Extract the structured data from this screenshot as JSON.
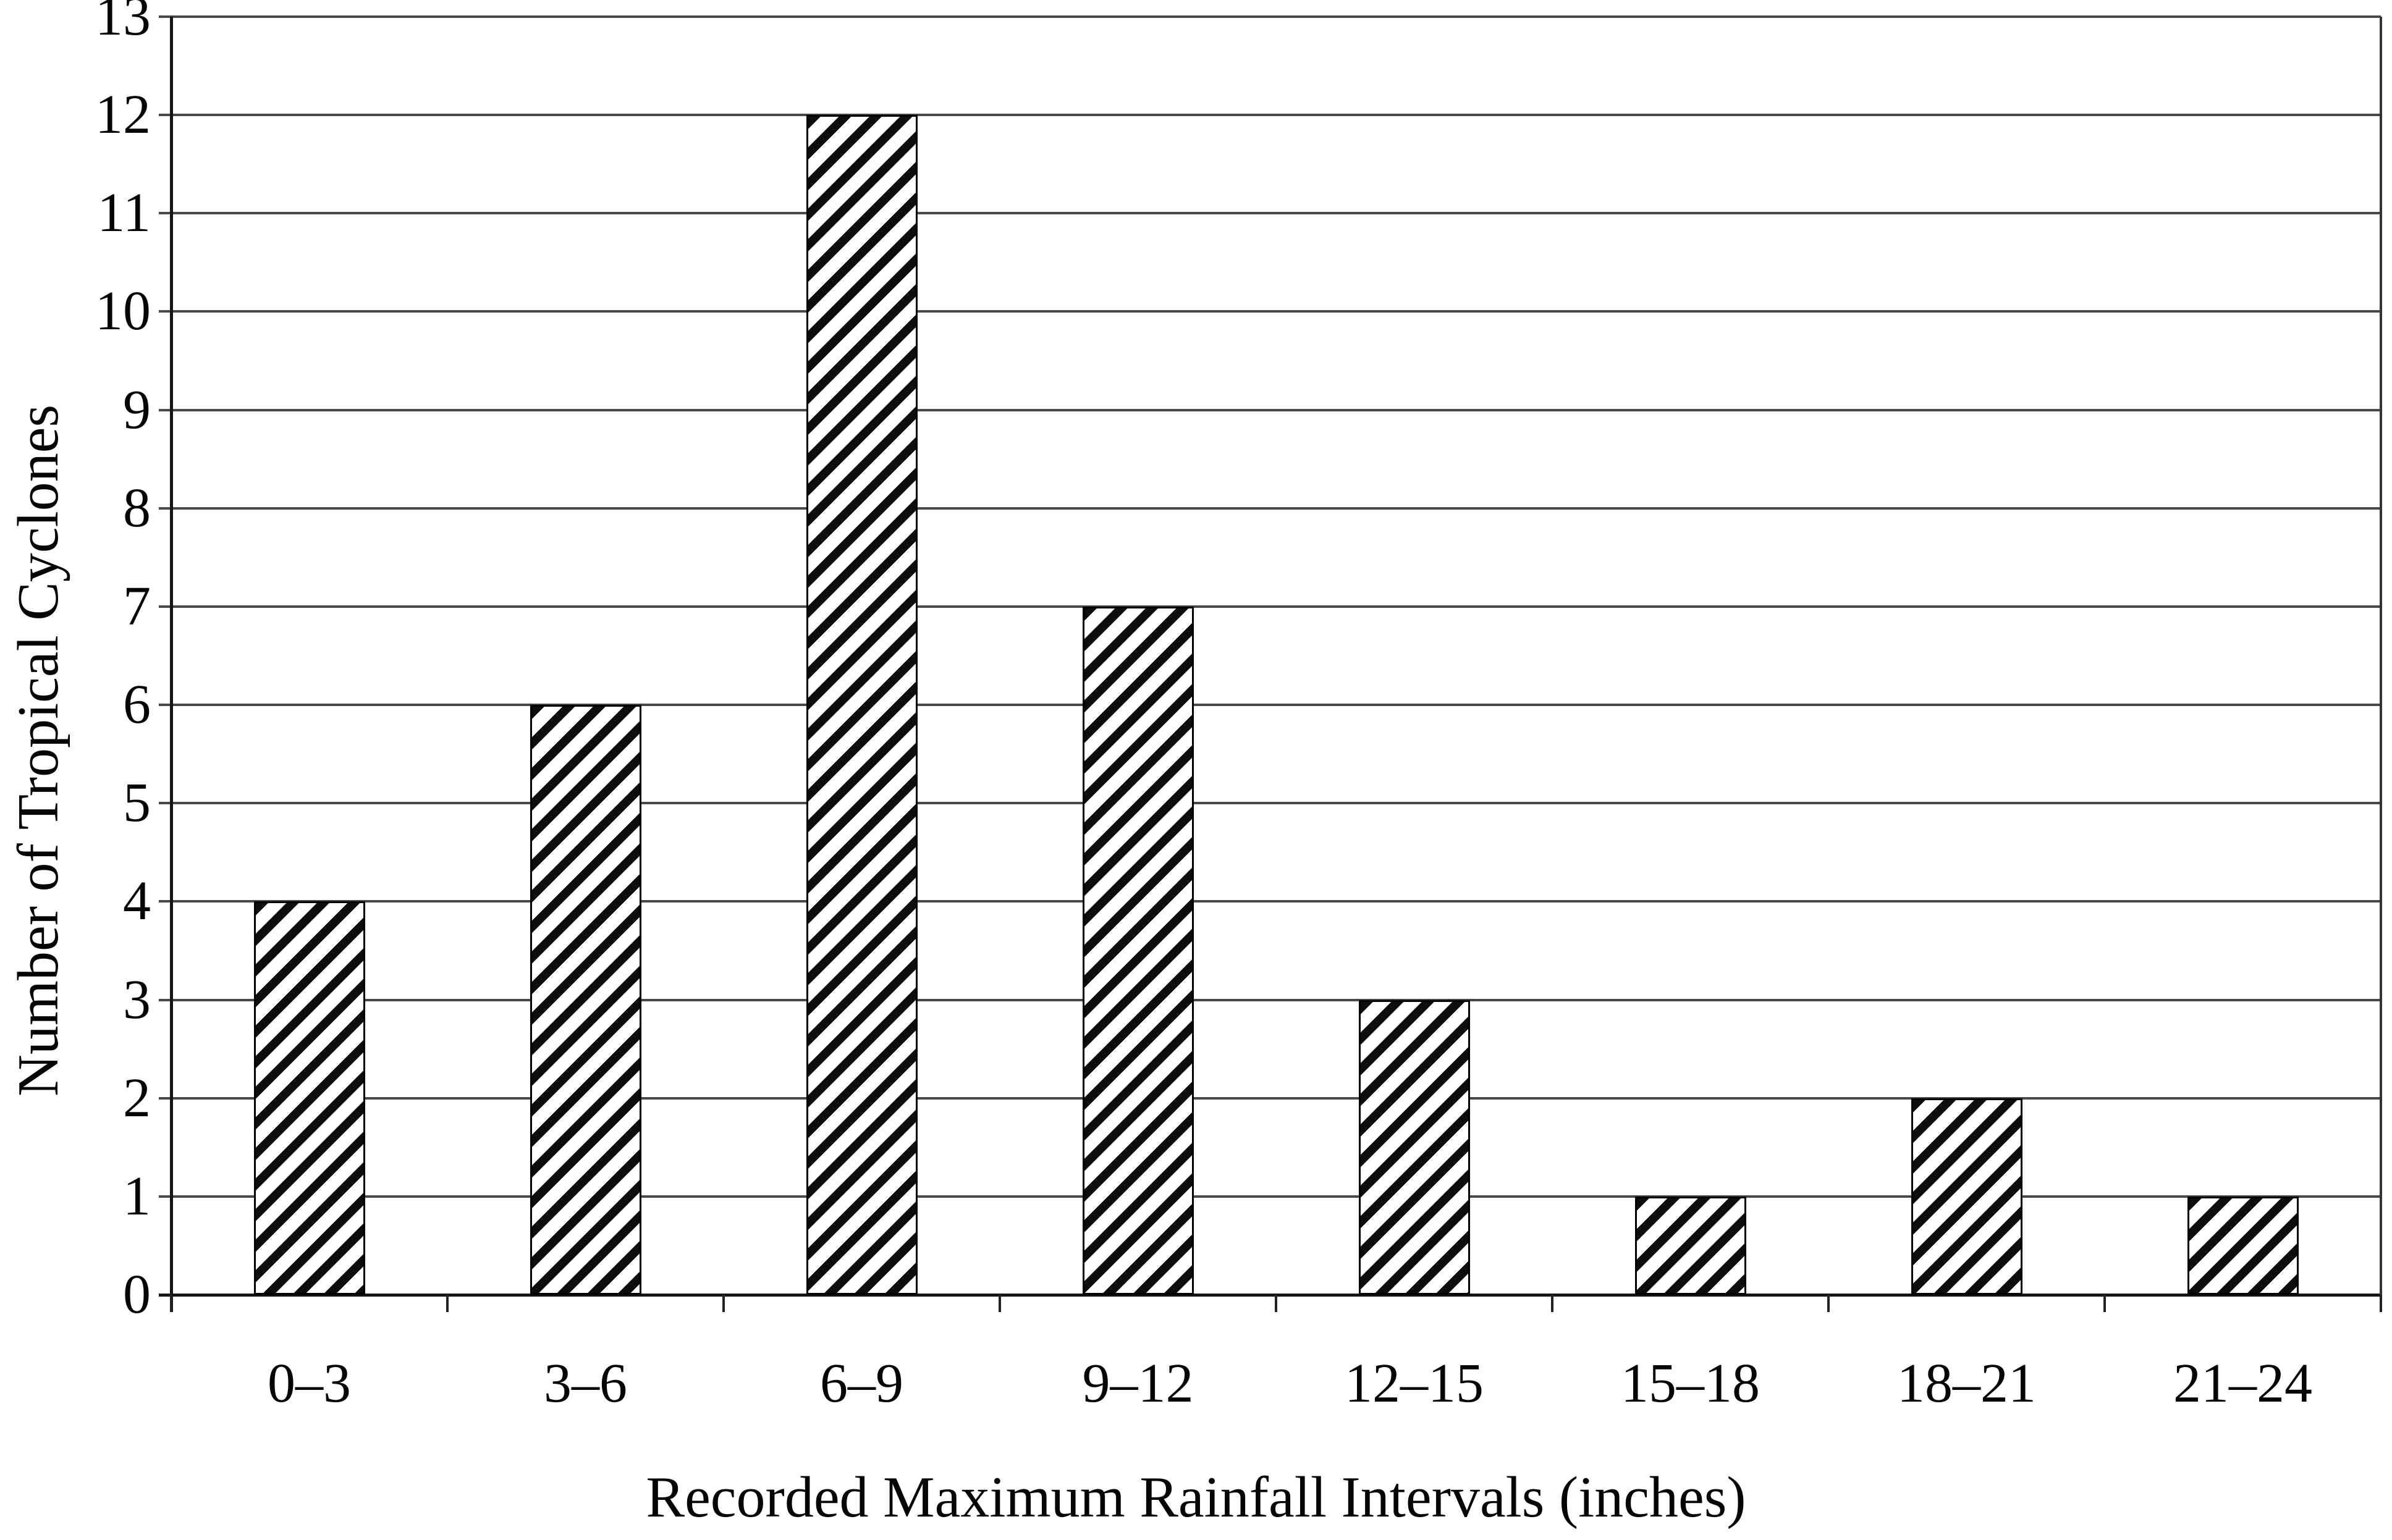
{
  "figure": {
    "background": "#ffffff",
    "text_color": "#050505",
    "gridline_color": "#4a4a4a",
    "axis_color": "#161616"
  },
  "chart_data": {
    "type": "bar",
    "title": "",
    "categories": [
      "0–3",
      "3–6",
      "6–9",
      "9–12",
      "12–15",
      "15–18",
      "18–21",
      "21–24"
    ],
    "values": [
      4,
      6,
      12,
      7,
      3,
      1,
      2,
      1
    ],
    "xlabel": "Recorded Maximum Rainfall Intervals (inches)",
    "ylabel": "Number of Tropical Cyclones",
    "ylim": [
      0,
      13
    ],
    "y_ticks": [
      0,
      1,
      2,
      3,
      4,
      5,
      6,
      7,
      8,
      9,
      10,
      11,
      12,
      13
    ],
    "grid": "horizontal",
    "legend_position": "none",
    "bar_style": {
      "fill": "#ffffff",
      "hatch": "diagonal-forward",
      "hatch_color": "#0d0d0d",
      "border_color": "#000000"
    }
  }
}
